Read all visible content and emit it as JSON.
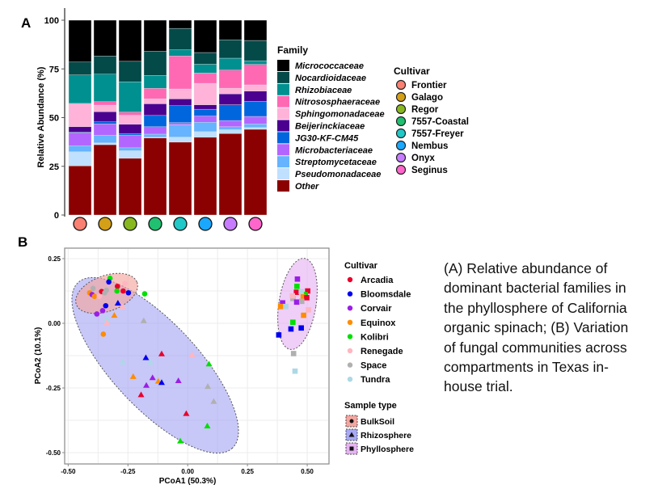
{
  "panel_labels": {
    "a": "A",
    "b": "B"
  },
  "caption": {
    "lines": [
      "(A) Relative abundance of",
      "dominant bacterial families in",
      "the phyllosphere of California",
      "organic spinach; (B) Variation",
      "of fungal communities across",
      "compartments in Texas in-",
      "house trial."
    ]
  },
  "chart_data": [
    {
      "type": "bar",
      "stacked": true,
      "ylabel": "Relative Abundance (%)",
      "ylim": [
        0,
        100
      ],
      "yticks": [
        "0",
        "25",
        "50",
        "75",
        "100"
      ],
      "family_legend_title": "Family",
      "cultivar_legend_title": "Cultivar",
      "categories": [
        "Frontier",
        "Galago",
        "Regor",
        "7557-Coastal",
        "7557-Freyer",
        "Nembus",
        "Onyx",
        "Seginus"
      ],
      "category_colors": [
        "#fa8072",
        "#d4a017",
        "#88b820",
        "#20c070",
        "#20c8c8",
        "#1aa8ff",
        "#c77cff",
        "#ff66cc"
      ],
      "series": [
        {
          "name": "Micrococcaceae",
          "color": "#000000",
          "values": [
            21.5,
            18.4,
            21.1,
            15.9,
            4.2,
            16.6,
            10.1,
            10.4
          ]
        },
        {
          "name": "Nocardioidaceae",
          "color": "#034a49",
          "values": [
            6.6,
            9.3,
            10.5,
            12.4,
            11.0,
            6.0,
            9.4,
            10.4
          ]
        },
        {
          "name": "Rhizobiaceae",
          "color": "#009090",
          "values": [
            14.6,
            14.1,
            15.6,
            6.7,
            3.2,
            4.5,
            6.1,
            1.9
          ]
        },
        {
          "name": "Nitrososphaeraceae",
          "color": "#ff69b4",
          "values": [
            0.4,
            1.8,
            1.6,
            5.4,
            16.9,
            5.3,
            9.3,
            10.5
          ]
        },
        {
          "name": "Sphingomonadaceae",
          "color": "#ffb3d9",
          "values": [
            11.6,
            3.4,
            4.6,
            2.5,
            5.1,
            11.0,
            2.9,
            3.2
          ]
        },
        {
          "name": "Beijerinckiaceae",
          "color": "#4b0090",
          "values": [
            2.8,
            5.2,
            4.8,
            6.0,
            3.5,
            2.3,
            5.6,
            5.2
          ]
        },
        {
          "name": "JG30-KF-CM45",
          "color": "#0066dd",
          "values": [
            0.4,
            1.1,
            0.9,
            5.8,
            8.7,
            3.5,
            8.1,
            7.8
          ]
        },
        {
          "name": "Microbacteriaceae",
          "color": "#b366ff",
          "values": [
            6.5,
            5.7,
            6.4,
            3.8,
            1.1,
            3.2,
            3.2,
            3.9
          ]
        },
        {
          "name": "Streptomycetaceae",
          "color": "#66b3ff",
          "values": [
            3.1,
            4.0,
            1.5,
            1.6,
            6.3,
            4.8,
            1.5,
            1.8
          ]
        },
        {
          "name": "Pseudomonadaceae",
          "color": "#bfe0ff",
          "values": [
            7.3,
            0.9,
            3.9,
            0.4,
            2.6,
            2.9,
            2.0,
            0.9
          ]
        },
        {
          "name": "Other",
          "color": "#8b0000",
          "values": [
            25.2,
            36.1,
            29.1,
            39.5,
            37.4,
            39.9,
            41.8,
            44.0
          ]
        }
      ]
    },
    {
      "type": "scatter",
      "xlabel": "PCoA1 (50.3%)",
      "ylabel": "PCoA2 (10.1%)",
      "xlim": [
        -0.51,
        0.6
      ],
      "ylim": [
        -0.55,
        0.28
      ],
      "xticks": [
        "-0.50",
        "-0.25",
        "0.00",
        "0.25",
        "0.50"
      ],
      "yticks": [
        "0.25",
        "0.00",
        "-0.25",
        "-0.50"
      ],
      "grid": true,
      "cultivar_legend_title": "Cultivar",
      "cultivars": [
        {
          "name": "Arcadia",
          "color": "#e8002a"
        },
        {
          "name": "Bloomsdale",
          "color": "#0000ee"
        },
        {
          "name": "Corvair",
          "color": "#9a1ee6"
        },
        {
          "name": "Equinox",
          "color": "#ff8c00"
        },
        {
          "name": "Kolibri",
          "color": "#00e000"
        },
        {
          "name": "Renegade",
          "color": "#ffb6c1"
        },
        {
          "name": "Space",
          "color": "#b0b0b0"
        },
        {
          "name": "Tundra",
          "color": "#add8e6"
        }
      ],
      "sample_type_legend_title": "Sample type",
      "sample_types": [
        {
          "name": "BulkSoil",
          "shape": "circle",
          "ellipse_color": "#f4a6a0",
          "points": [
            [
              -0.325,
              0.174,
              4
            ],
            [
              -0.263,
              0.154,
              5
            ],
            [
              -0.33,
              0.16,
              1
            ],
            [
              -0.294,
              0.143,
              0
            ],
            [
              -0.396,
              0.135,
              6
            ],
            [
              -0.36,
              0.123,
              0
            ],
            [
              -0.41,
              0.118,
              3
            ],
            [
              -0.4,
              0.111,
              2
            ],
            [
              -0.39,
              0.104,
              3
            ],
            [
              -0.37,
              0.104,
              5
            ],
            [
              -0.34,
              0.128,
              6
            ],
            [
              -0.347,
              0.118,
              6
            ],
            [
              -0.27,
              0.125,
              0
            ],
            [
              -0.296,
              0.125,
              4
            ],
            [
              -0.248,
              0.118,
              1
            ],
            [
              -0.18,
              0.114,
              4
            ],
            [
              -0.343,
              0.068,
              1
            ],
            [
              -0.356,
              0.049,
              2
            ],
            [
              -0.38,
              0.036,
              2
            ],
            [
              -0.353,
              -0.042,
              3
            ]
          ]
        },
        {
          "name": "Rhizosphere",
          "shape": "triangle",
          "ellipse_color": "#a9a9f5",
          "points": [
            [
              -0.292,
              0.078,
              1
            ],
            [
              -0.272,
              0.065,
              5
            ],
            [
              -0.307,
              0.031,
              3
            ],
            [
              -0.338,
              0.017,
              7
            ],
            [
              -0.338,
              0.003,
              5
            ],
            [
              -0.184,
              0.01,
              6
            ],
            [
              -0.109,
              -0.118,
              0
            ],
            [
              0.018,
              -0.122,
              5
            ],
            [
              -0.175,
              -0.133,
              1
            ],
            [
              -0.156,
              -0.15,
              7
            ],
            [
              -0.272,
              -0.149,
              7
            ],
            [
              0.089,
              -0.157,
              4
            ],
            [
              -0.228,
              -0.206,
              3
            ],
            [
              -0.147,
              -0.21,
              2
            ],
            [
              -0.123,
              -0.224,
              3
            ],
            [
              -0.109,
              -0.229,
              1
            ],
            [
              -0.039,
              -0.222,
              2
            ],
            [
              -0.173,
              -0.24,
              2
            ],
            [
              0.084,
              -0.244,
              6
            ],
            [
              -0.195,
              -0.276,
              0
            ],
            [
              0.109,
              -0.302,
              6
            ],
            [
              -0.006,
              -0.349,
              0
            ],
            [
              0.082,
              -0.397,
              4
            ],
            [
              -0.031,
              -0.455,
              4
            ]
          ]
        },
        {
          "name": "Phyllosphere",
          "shape": "square",
          "ellipse_color": "#e6b3f2",
          "points": [
            [
              0.459,
              0.171,
              2
            ],
            [
              0.457,
              0.143,
              4
            ],
            [
              0.455,
              0.12,
              0
            ],
            [
              0.502,
              0.125,
              0
            ],
            [
              0.492,
              0.111,
              4
            ],
            [
              0.44,
              0.096,
              6
            ],
            [
              0.438,
              0.106,
              5
            ],
            [
              0.475,
              0.122,
              7
            ],
            [
              0.483,
              0.102,
              3
            ],
            [
              0.498,
              0.099,
              0
            ],
            [
              0.397,
              0.079,
              2
            ],
            [
              0.456,
              0.082,
              2
            ],
            [
              0.477,
              0.085,
              6
            ],
            [
              0.389,
              0.065,
              3
            ],
            [
              0.41,
              0.065,
              7
            ],
            [
              0.505,
              0.052,
              5
            ],
            [
              0.485,
              0.031,
              3
            ],
            [
              0.44,
              0.004,
              4
            ],
            [
              0.432,
              -0.022,
              1
            ],
            [
              0.475,
              -0.018,
              1
            ],
            [
              0.381,
              -0.045,
              1
            ],
            [
              0.443,
              -0.117,
              6
            ],
            [
              0.449,
              -0.185,
              7
            ]
          ]
        }
      ]
    }
  ]
}
